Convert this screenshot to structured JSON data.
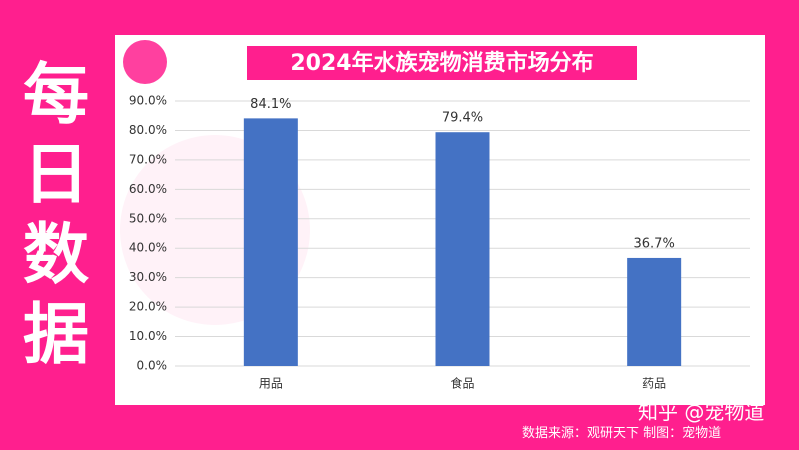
{
  "side_label": "每日数据",
  "watermark": "知乎 @宠物道",
  "source": "数据来源：观研天下  制图：宠物道",
  "chart_data": {
    "type": "bar",
    "title": "2024年水族宠物消费市场分布",
    "categories": [
      "用品",
      "食品",
      "药品"
    ],
    "values": [
      84.1,
      79.4,
      36.7
    ],
    "value_labels": [
      "84.1%",
      "79.4%",
      "36.7%"
    ],
    "color": "#4472c4",
    "ylim": [
      0,
      90
    ],
    "yticks": [
      {
        "value": 0,
        "label": "0.0%"
      },
      {
        "value": 10,
        "label": "10.0%"
      },
      {
        "value": 20,
        "label": "20.0%"
      },
      {
        "value": 30,
        "label": "30.0%"
      },
      {
        "value": 40,
        "label": "40.0%"
      },
      {
        "value": 50,
        "label": "50.0%"
      },
      {
        "value": 60,
        "label": "60.0%"
      },
      {
        "value": 70,
        "label": "70.0%"
      },
      {
        "value": 80,
        "label": "80.0%"
      },
      {
        "value": 90,
        "label": "90.0%"
      }
    ],
    "grid": true
  }
}
